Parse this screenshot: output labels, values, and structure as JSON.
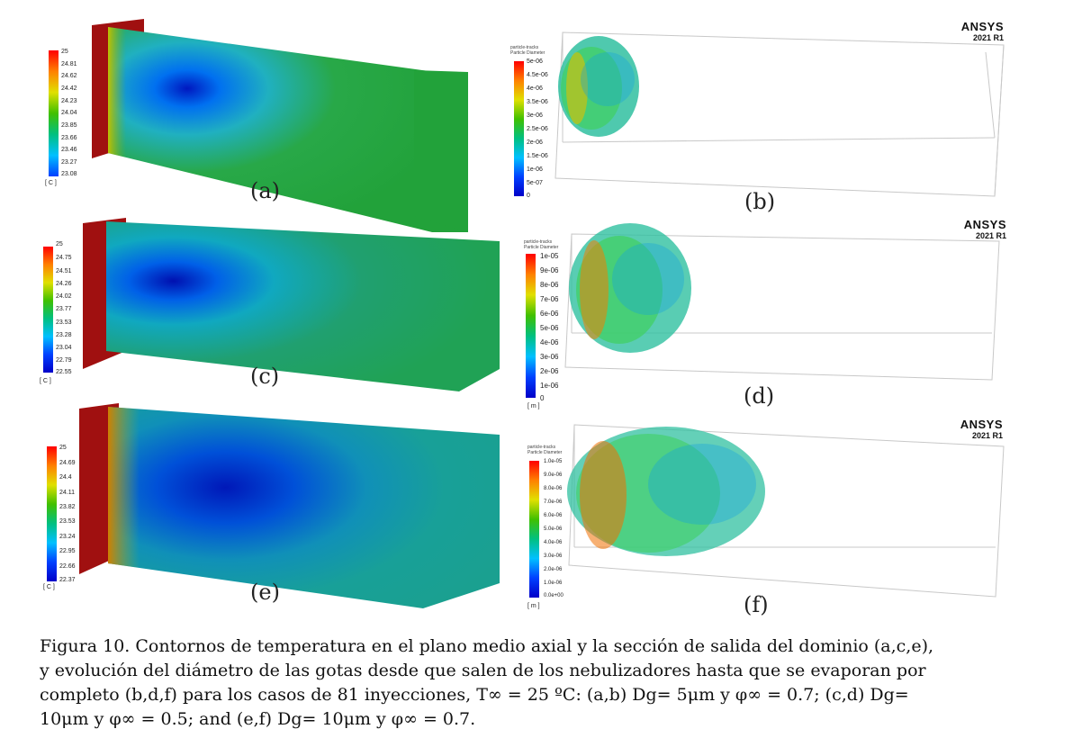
{
  "figure": {
    "panels": [
      {
        "id": "a",
        "label": "(a)",
        "legend_title": "",
        "unit": "[ C ]",
        "ticks": [
          "25",
          "24.81",
          "24.62",
          "24.42",
          "24.23",
          "24.04",
          "23.85",
          "23.66",
          "23.46",
          "23.27",
          "23.08"
        ]
      },
      {
        "id": "b",
        "label": "(b)",
        "legend_title": "particle-tracks\nParticle Diameter",
        "unit": "",
        "brand": "ANSYS",
        "version": "2021 R1",
        "ticks": [
          "5e-06",
          "4.5e-06",
          "4e-06",
          "3.5e-06",
          "3e-06",
          "2.5e-06",
          "2e-06",
          "1.5e-06",
          "1e-06",
          "5e-07",
          "0"
        ]
      },
      {
        "id": "c",
        "label": "(c)",
        "legend_title": "",
        "unit": "[ C ]",
        "ticks": [
          "25",
          "24.75",
          "24.51",
          "24.26",
          "24.02",
          "23.77",
          "23.53",
          "23.28",
          "23.04",
          "22.79",
          "22.55"
        ]
      },
      {
        "id": "d",
        "label": "(d)",
        "legend_title": "particle-tracks\nParticle Diameter",
        "unit": "[ m ]",
        "brand": "ANSYS",
        "version": "2021 R1",
        "ticks": [
          "1e-05",
          "9e-06",
          "8e-06",
          "7e-06",
          "6e-06",
          "5e-06",
          "4e-06",
          "3e-06",
          "2e-06",
          "1e-06",
          "0"
        ]
      },
      {
        "id": "e",
        "label": "(e)",
        "legend_title": "",
        "unit": "[ C ]",
        "ticks": [
          "25",
          "24.69",
          "24.4",
          "24.11",
          "23.82",
          "23.53",
          "23.24",
          "22.95",
          "22.66",
          "22.37"
        ]
      },
      {
        "id": "f",
        "label": "(f)",
        "legend_title": "particle-tracks\nParticle Diameter",
        "unit": "[ m ]",
        "brand": "ANSYS",
        "version": "2021 R1",
        "ticks": [
          "1.0e-05",
          "9.0e-06",
          "8.0e-06",
          "7.0e-06",
          "6.0e-06",
          "5.0e-06",
          "4.0e-06",
          "3.0e-06",
          "2.0e-06",
          "1.0e-06",
          "0.0e+00"
        ]
      }
    ],
    "caption": {
      "line1": "Figura 10. Contornos de temperatura en el plano medio axial y la sección de salida del dominio (a,c,e),",
      "line2": "y evolución del diámetro de las gotas desde que salen de los nebulizadores hasta que se evaporan por",
      "line3": "completo (b,d,f) para los casos de 81 inyecciones, T∞ = 25 ºC: (a,b) Dg= 5μm y φ∞ = 0.7; (c,d) Dg=",
      "line4": "10μm y φ∞ = 0.5; and (e,f) Dg= 10μm y φ∞ = 0.7."
    },
    "colors": {
      "jet": [
        "#0000c8",
        "#0080ff",
        "#00d0ff",
        "#00c060",
        "#40c000",
        "#c0e000",
        "#ffc000",
        "#ff6000",
        "#ff0000"
      ],
      "inlet_red": "#a01010",
      "a_body": "#22a23a",
      "c_body": "#20a255",
      "e_body": "#1aa090"
    }
  }
}
